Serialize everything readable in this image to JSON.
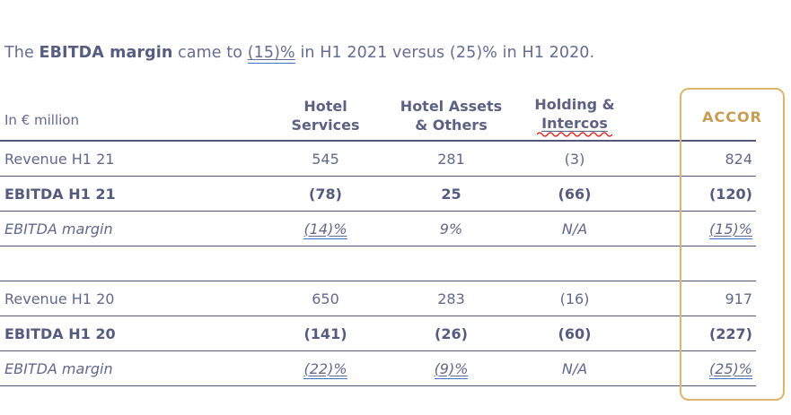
{
  "intro": {
    "pre": "The ",
    "term": "EBITDA margin",
    "mid": " came to ",
    "link_value": "(15)%",
    "post": " in H1 2021 versus (25)% in H1 2020."
  },
  "table": {
    "unit_label": "In € million",
    "columns": [
      {
        "line1": "Hotel",
        "line2": "Services"
      },
      {
        "line1": "Hotel Assets",
        "line2": "& Others"
      },
      {
        "line1": "Holding &",
        "line2": "Intercos"
      }
    ],
    "accor_label": "ACCOR",
    "rows": [
      {
        "label": "Revenue H1 21",
        "style": "regular",
        "values": [
          "545",
          "281",
          "(3)",
          "824"
        ],
        "underlined": [
          false,
          false,
          false,
          false
        ]
      },
      {
        "label": "EBITDA H1 21",
        "style": "bold",
        "values": [
          "(78)",
          "25",
          "(66)",
          "(120)"
        ],
        "underlined": [
          false,
          false,
          false,
          false
        ]
      },
      {
        "label": "EBITDA margin",
        "style": "italic",
        "values": [
          "(14)%",
          "9%",
          "N/A",
          "(15)%"
        ],
        "underlined": [
          true,
          false,
          false,
          true
        ]
      },
      {
        "label": "",
        "style": "blank",
        "values": [
          "",
          "",
          "",
          ""
        ],
        "underlined": [
          false,
          false,
          false,
          false
        ]
      },
      {
        "label": "Revenue H1 20",
        "style": "regular",
        "values": [
          "650",
          "283",
          "(16)",
          "917"
        ],
        "underlined": [
          false,
          false,
          false,
          false
        ]
      },
      {
        "label": "EBITDA H1 20",
        "style": "bold",
        "values": [
          "(141)",
          "(26)",
          "(60)",
          "(227)"
        ],
        "underlined": [
          false,
          false,
          false,
          false
        ]
      },
      {
        "label": "EBITDA margin",
        "style": "italic",
        "values": [
          "(22)%",
          "(9)%",
          "N/A",
          "(25)%"
        ],
        "underlined": [
          true,
          true,
          false,
          true
        ]
      }
    ]
  },
  "colors": {
    "text": "#63688a",
    "bold_text": "#555b7c",
    "rule_line": "#53587b",
    "accor_gold_text": "#c59d53",
    "accor_gold_border": "#ddb56b",
    "link_underline_blue": "#4472c4",
    "spellcheck_red": "#e01010"
  }
}
